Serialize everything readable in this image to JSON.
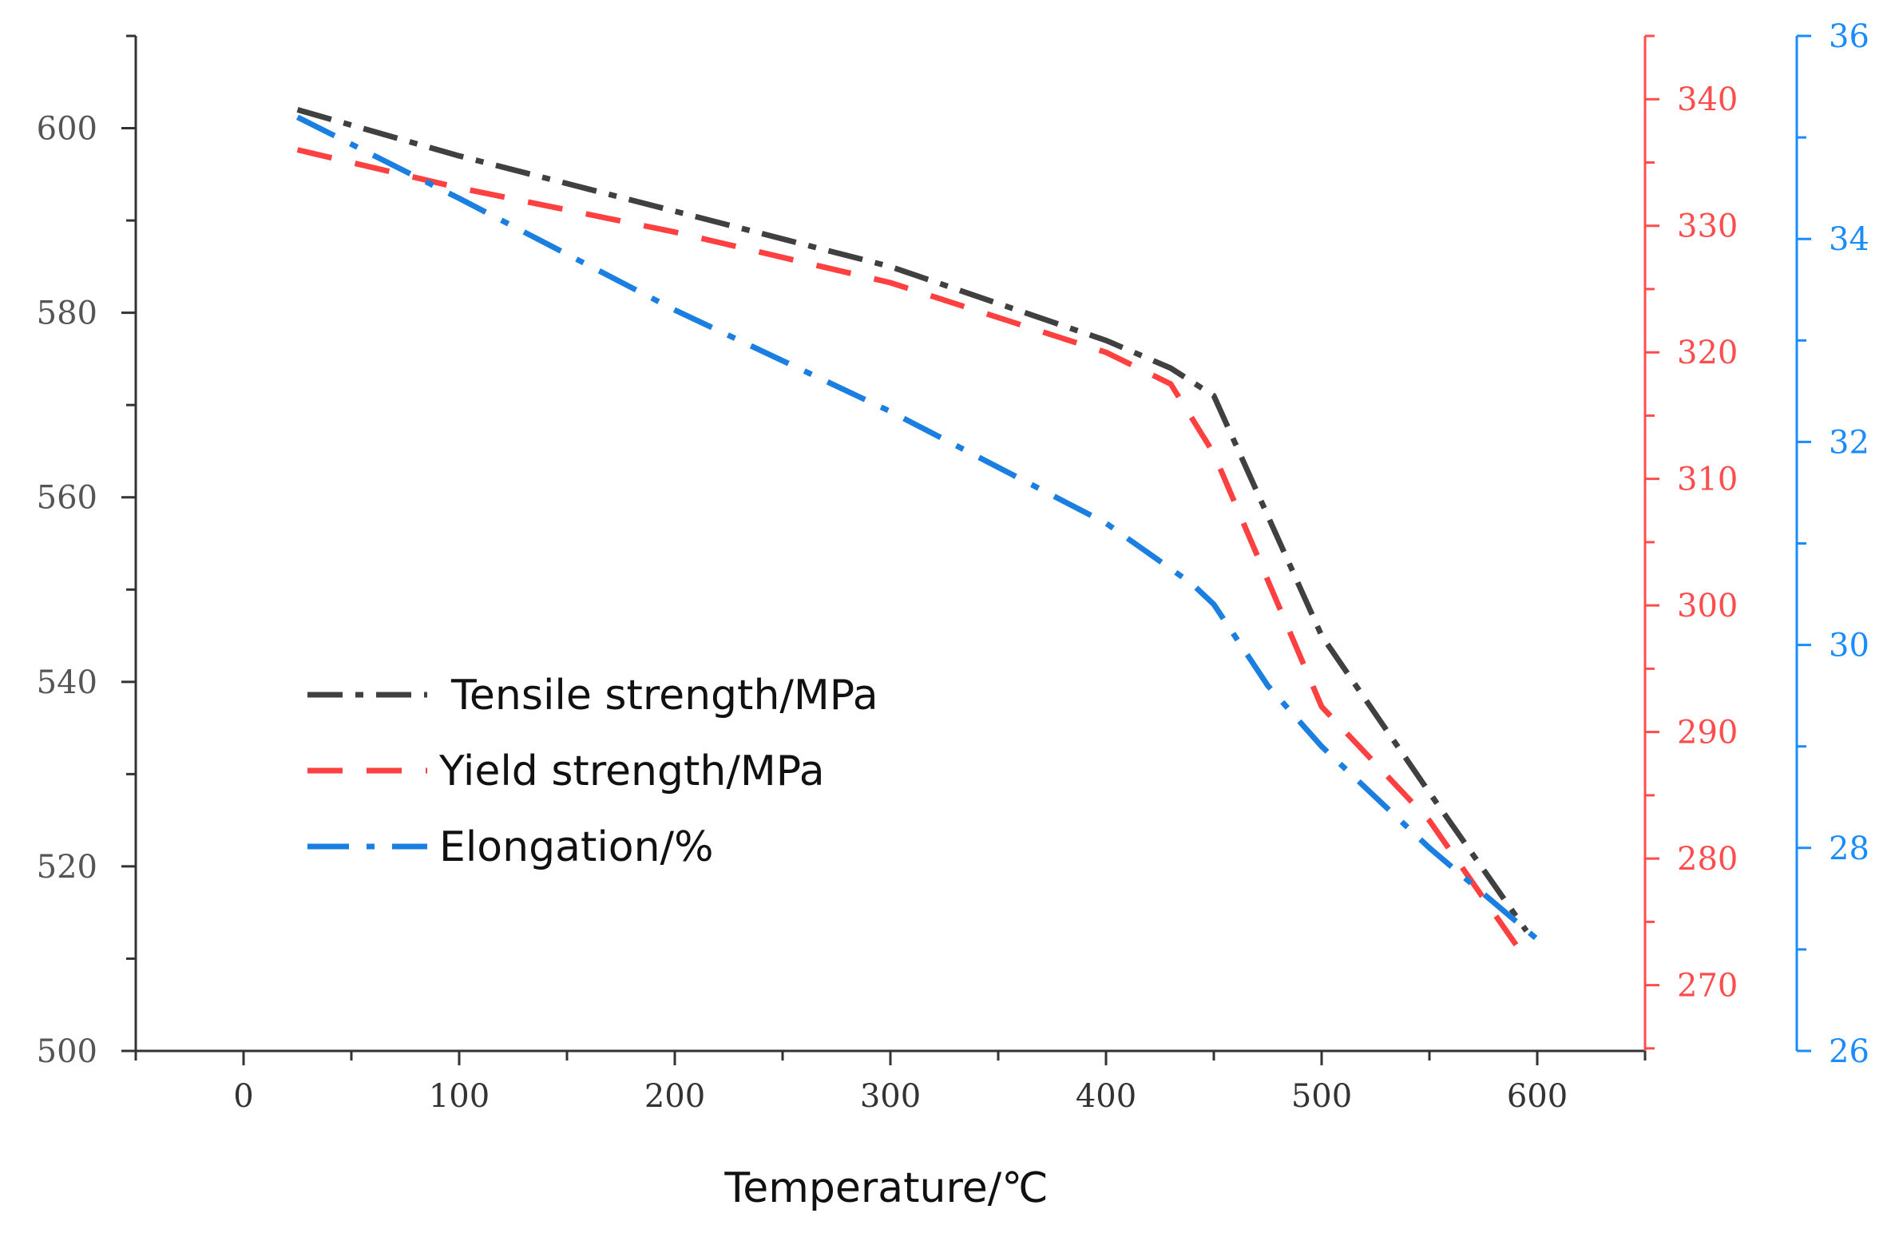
{
  "chart_data": {
    "type": "line",
    "title": "",
    "xlabel": "Temperature/℃",
    "xlim": [
      -50,
      650
    ],
    "xticks": [
      0,
      100,
      200,
      300,
      400,
      500,
      600
    ],
    "axes": [
      {
        "id": "left",
        "side": "left",
        "ylim": [
          500,
          610
        ],
        "ticks": [
          500,
          520,
          540,
          560,
          580,
          600
        ],
        "color": "#333333"
      },
      {
        "id": "right1",
        "side": "right",
        "ylim": [
          264.8,
          345
        ],
        "ticks": [
          270,
          280,
          290,
          300,
          310,
          320,
          330,
          340
        ],
        "color": "#ff4d4d"
      },
      {
        "id": "right2",
        "side": "right-outer",
        "ylim": [
          26,
          36
        ],
        "ticks": [
          26,
          28,
          30,
          32,
          34,
          36
        ],
        "color": "#1a8cff"
      }
    ],
    "legend": "center-left",
    "series": [
      {
        "name": "Tensile strength/MPa",
        "axis": "left",
        "color": "#404040",
        "style": "dashdot",
        "x": [
          25,
          100,
          200,
          300,
          400,
          430,
          450,
          500,
          550,
          595
        ],
        "y": [
          602,
          597,
          591,
          585,
          577,
          574,
          571,
          545,
          528,
          513
        ]
      },
      {
        "name": "Yield strength/MPa",
        "axis": "right1",
        "color": "#ff4040",
        "style": "dashed",
        "x": [
          25,
          100,
          200,
          300,
          400,
          430,
          450,
          500,
          550,
          595
        ],
        "y": [
          336,
          333,
          329.5,
          325.5,
          320,
          317.5,
          312,
          292,
          283,
          272
        ]
      },
      {
        "name": "Elongation/%",
        "axis": "right2",
        "color": "#1a7fe0",
        "style": "dashdotdot",
        "x": [
          25,
          100,
          200,
          300,
          400,
          440,
          450,
          475,
          500,
          550,
          600
        ],
        "y": [
          35.2,
          34.4,
          33.3,
          32.3,
          31.2,
          30.6,
          30.4,
          29.6,
          29.0,
          28.0,
          27.1
        ]
      }
    ]
  }
}
